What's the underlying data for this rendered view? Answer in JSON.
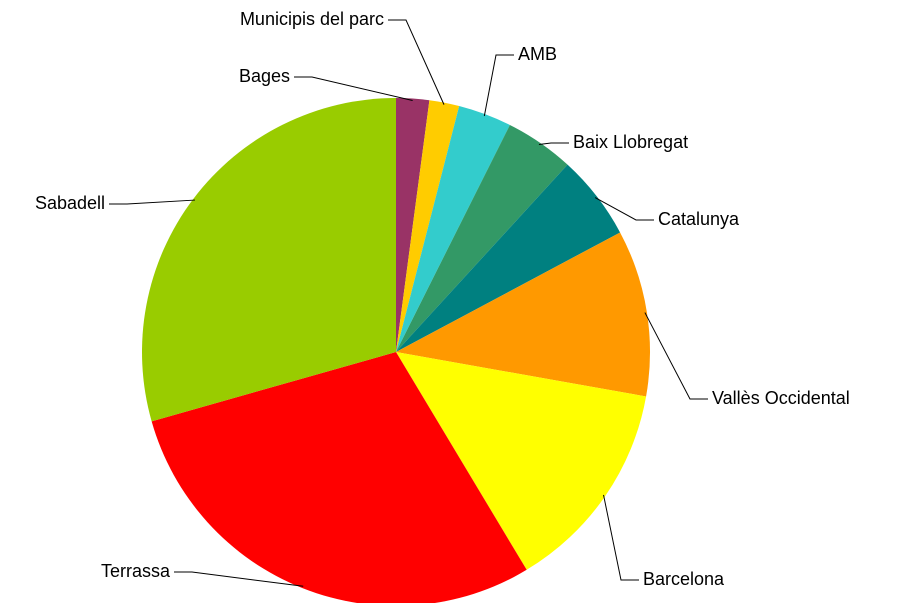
{
  "chart_data": {
    "type": "pie",
    "categories": [
      "Bages",
      "Municipis del parc",
      "AMB",
      "Baix Llobregat",
      "Catalunya",
      "Vallès Occidental",
      "Barcelona",
      "Terrassa",
      "Sabadell"
    ],
    "values": [
      2.1,
      1.9,
      3.4,
      4.4,
      5.4,
      10.6,
      13.6,
      29.2,
      29.4
    ],
    "colors": [
      "#993366",
      "#FFCC00",
      "#33CCCC",
      "#339966",
      "#008080",
      "#FF9900",
      "#FFFF00",
      "#FF0000",
      "#99CC00"
    ]
  }
}
